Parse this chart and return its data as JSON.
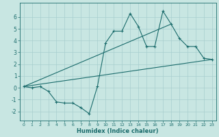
{
  "xlabel": "Humidex (Indice chaleur)",
  "xlim": [
    -0.5,
    23.5
  ],
  "ylim": [
    -2.8,
    7.2
  ],
  "xticks": [
    0,
    1,
    2,
    3,
    4,
    5,
    6,
    7,
    8,
    9,
    10,
    11,
    12,
    13,
    14,
    15,
    16,
    17,
    18,
    19,
    20,
    21,
    22,
    23
  ],
  "yticks": [
    -2,
    -1,
    0,
    1,
    2,
    3,
    4,
    5,
    6
  ],
  "bg_color": "#c8e6e2",
  "line_color": "#1a6b6b",
  "grid_color": "#a8cece",
  "main_x": [
    0,
    1,
    2,
    3,
    4,
    5,
    6,
    7,
    8,
    9,
    10,
    11,
    12,
    13,
    14,
    15,
    16,
    17,
    18,
    19,
    20,
    21,
    22,
    23
  ],
  "main_y": [
    0.1,
    0.0,
    0.1,
    -0.3,
    -1.2,
    -1.3,
    -1.3,
    -1.7,
    -2.2,
    0.1,
    3.8,
    4.8,
    4.8,
    6.3,
    5.2,
    3.5,
    3.5,
    6.5,
    5.4,
    4.2,
    3.5,
    3.5,
    2.5,
    2.4
  ],
  "trend1_x": [
    0,
    23
  ],
  "trend1_y": [
    0.1,
    2.4
  ],
  "trend2_x": [
    0,
    18
  ],
  "trend2_y": [
    0.1,
    5.4
  ],
  "xlabel_fontsize": 6,
  "xtick_fontsize": 4.5,
  "ytick_fontsize": 5.5
}
